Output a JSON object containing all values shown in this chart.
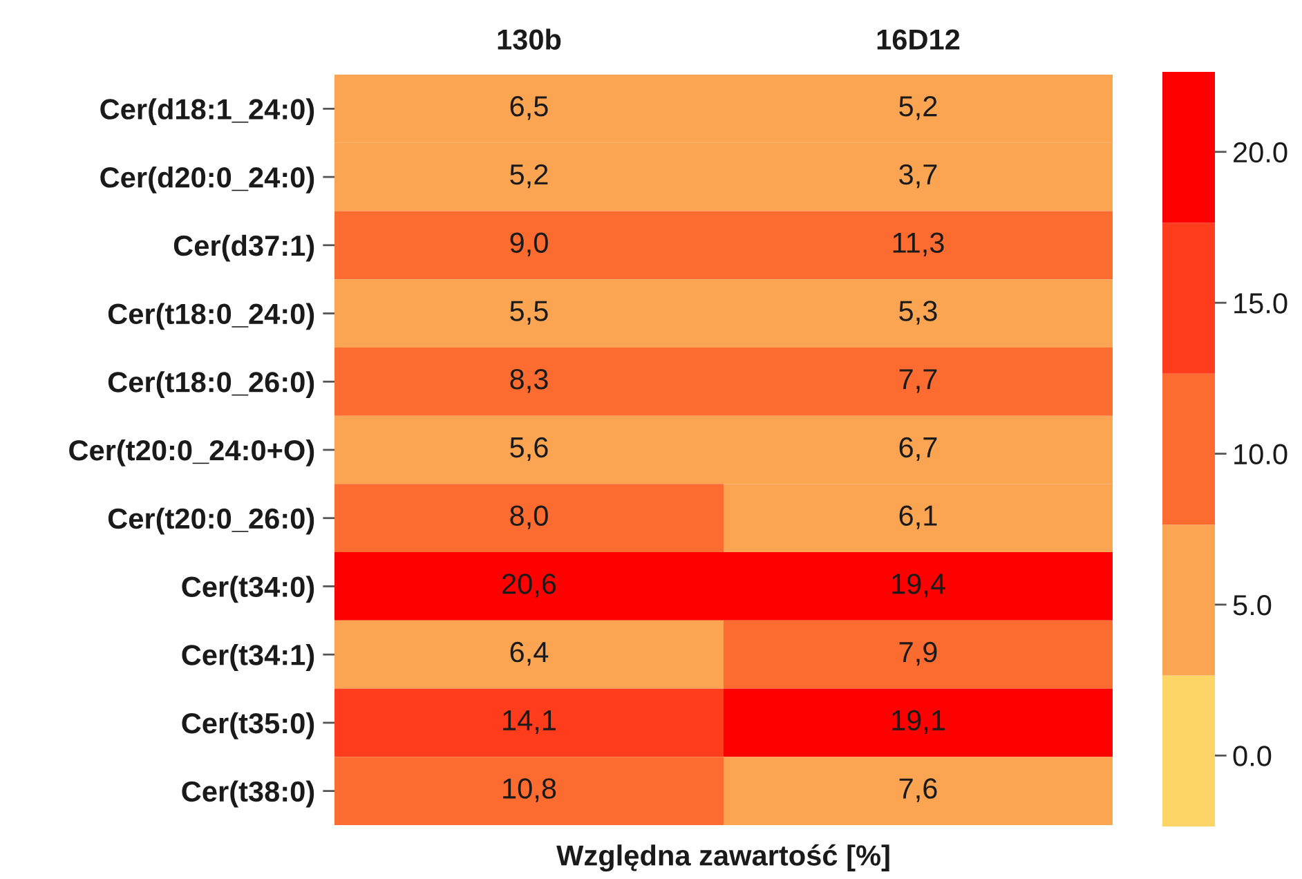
{
  "chart_data": {
    "type": "heatmap",
    "xlabel": "Względna zawartość [%]",
    "categories": [
      "130b",
      "16D12"
    ],
    "y_categories": [
      "Cer(d18:1_24:0)",
      "Cer(d20:0_24:0)",
      "Cer(d37:1)",
      "Cer(t18:0_24:0)",
      "Cer(t18:0_26:0)",
      "Cer(t20:0_24:0+O)",
      "Cer(t20:0_26:0)",
      "Cer(t34:0)",
      "Cer(t34:1)",
      "Cer(t35:0)",
      "Cer(t38:0)"
    ],
    "cells": [
      [
        6.5,
        5.2
      ],
      [
        5.2,
        3.7
      ],
      [
        9.0,
        11.3
      ],
      [
        5.5,
        5.3
      ],
      [
        8.3,
        7.7
      ],
      [
        5.6,
        6.7
      ],
      [
        8.0,
        6.1
      ],
      [
        20.6,
        19.4
      ],
      [
        6.4,
        7.9
      ],
      [
        14.1,
        19.1
      ],
      [
        10.8,
        7.6
      ]
    ],
    "cell_labels": [
      [
        "6,5",
        "5,2"
      ],
      [
        "5,2",
        "3,7"
      ],
      [
        "9,0",
        "11,3"
      ],
      [
        "5,5",
        "5,3"
      ],
      [
        "8,3",
        "7,7"
      ],
      [
        "5,6",
        "6,7"
      ],
      [
        "8,0",
        "6,1"
      ],
      [
        "20,6",
        "19,4"
      ],
      [
        "6,4",
        "7,9"
      ],
      [
        "14,1",
        "19,1"
      ],
      [
        "10,8",
        "7,6"
      ]
    ],
    "colors": [
      "#fdd567",
      "#fba552",
      "#fc6b30",
      "#ff3c1c",
      "#ff0000"
    ],
    "clim": [
      -2.35,
      22.65
    ],
    "cticks": [
      {
        "value": 0,
        "label": "0.0"
      },
      {
        "value": 5,
        "label": "5.0"
      },
      {
        "value": 10,
        "label": "10.0"
      },
      {
        "value": 15,
        "label": "15.0"
      },
      {
        "value": 20,
        "label": "20.0"
      }
    ]
  }
}
